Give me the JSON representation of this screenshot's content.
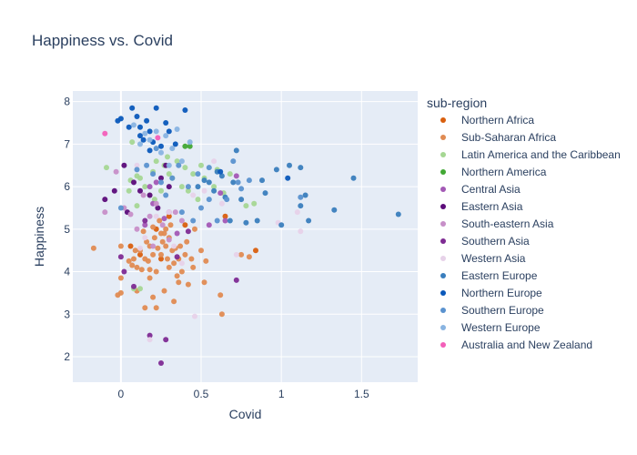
{
  "chart_data": {
    "type": "scatter",
    "title": "Happiness vs. Covid",
    "xlabel": "Covid",
    "ylabel": "Happiness",
    "xlim": [
      -0.3,
      1.85
    ],
    "ylim": [
      1.4,
      8.25
    ],
    "xticks": [
      0,
      0.5,
      1,
      1.5
    ],
    "xtick_labels": [
      "0",
      "0.5",
      "1",
      "1.5"
    ],
    "yticks": [
      2,
      3,
      4,
      5,
      6,
      7,
      8
    ],
    "ytick_labels": [
      "2",
      "3",
      "4",
      "5",
      "6",
      "7",
      "8"
    ],
    "grid": true,
    "legend_title": "sub-region",
    "legend_position": "right",
    "plot_bg": "#e5ecf6",
    "series": [
      {
        "name": "Northern Africa",
        "color": "#d95f0e",
        "points": [
          [
            0.06,
            4.6
          ],
          [
            0.12,
            4.4
          ],
          [
            0.22,
            5.0
          ],
          [
            0.25,
            4.3
          ],
          [
            0.3,
            5.3
          ],
          [
            0.84,
            4.5
          ],
          [
            0.65,
            5.3
          ],
          [
            0.4,
            5.1
          ]
        ]
      },
      {
        "name": "Sub-Saharan Africa",
        "color": "#e08b52",
        "points": [
          [
            -0.17,
            4.55
          ],
          [
            -0.02,
            3.45
          ],
          [
            0.0,
            3.5
          ],
          [
            0.0,
            3.85
          ],
          [
            0.0,
            4.6
          ],
          [
            0.05,
            4.25
          ],
          [
            0.07,
            4.15
          ],
          [
            0.08,
            4.3
          ],
          [
            0.1,
            4.1
          ],
          [
            0.1,
            3.55
          ],
          [
            0.12,
            4.5
          ],
          [
            0.13,
            4.05
          ],
          [
            0.14,
            4.95
          ],
          [
            0.15,
            3.15
          ],
          [
            0.16,
            4.7
          ],
          [
            0.17,
            4.25
          ],
          [
            0.18,
            3.85
          ],
          [
            0.18,
            4.6
          ],
          [
            0.2,
            4.4
          ],
          [
            0.2,
            5.05
          ],
          [
            0.2,
            3.4
          ],
          [
            0.21,
            4.8
          ],
          [
            0.22,
            3.15
          ],
          [
            0.22,
            4.0
          ],
          [
            0.23,
            4.55
          ],
          [
            0.24,
            5.2
          ],
          [
            0.25,
            4.9
          ],
          [
            0.25,
            4.4
          ],
          [
            0.26,
            4.7
          ],
          [
            0.27,
            3.55
          ],
          [
            0.28,
            4.6
          ],
          [
            0.28,
            5.0
          ],
          [
            0.29,
            4.3
          ],
          [
            0.3,
            4.1
          ],
          [
            0.3,
            4.8
          ],
          [
            0.31,
            5.1
          ],
          [
            0.32,
            4.5
          ],
          [
            0.33,
            3.3
          ],
          [
            0.34,
            4.55
          ],
          [
            0.35,
            3.9
          ],
          [
            0.36,
            4.3
          ],
          [
            0.36,
            3.75
          ],
          [
            0.37,
            4.6
          ],
          [
            0.38,
            4.0
          ],
          [
            0.4,
            4.4
          ],
          [
            0.41,
            4.7
          ],
          [
            0.42,
            3.7
          ],
          [
            0.44,
            4.3
          ],
          [
            0.45,
            4.1
          ],
          [
            0.46,
            5.0
          ],
          [
            0.5,
            4.5
          ],
          [
            0.52,
            3.75
          ],
          [
            0.53,
            4.25
          ],
          [
            0.62,
            3.45
          ],
          [
            0.63,
            3.0
          ],
          [
            0.75,
            4.4
          ],
          [
            0.8,
            4.35
          ],
          [
            0.18,
            4.05
          ],
          [
            0.27,
            4.9
          ],
          [
            0.33,
            4.2
          ],
          [
            0.15,
            4.3
          ],
          [
            0.09,
            4.5
          ]
        ]
      },
      {
        "name": "Latin America and the Caribbean",
        "color": "#a5d793",
        "points": [
          [
            -0.09,
            6.45
          ],
          [
            0.05,
            5.9
          ],
          [
            0.06,
            6.15
          ],
          [
            0.07,
            7.05
          ],
          [
            0.08,
            3.6
          ],
          [
            0.1,
            6.25
          ],
          [
            0.1,
            5.55
          ],
          [
            0.12,
            6.2
          ],
          [
            0.15,
            6.0
          ],
          [
            0.18,
            5.8
          ],
          [
            0.2,
            6.35
          ],
          [
            0.22,
            6.6
          ],
          [
            0.25,
            5.9
          ],
          [
            0.27,
            6.5
          ],
          [
            0.3,
            6.3
          ],
          [
            0.32,
            6.2
          ],
          [
            0.35,
            6.6
          ],
          [
            0.38,
            6.0
          ],
          [
            0.4,
            6.45
          ],
          [
            0.42,
            5.9
          ],
          [
            0.45,
            6.3
          ],
          [
            0.48,
            5.7
          ],
          [
            0.5,
            6.5
          ],
          [
            0.52,
            6.2
          ],
          [
            0.58,
            6.0
          ],
          [
            0.6,
            6.4
          ],
          [
            0.64,
            5.85
          ],
          [
            0.68,
            6.3
          ],
          [
            0.78,
            5.55
          ],
          [
            0.83,
            5.6
          ],
          [
            0.29,
            6.7
          ],
          [
            0.21,
            5.7
          ],
          [
            0.12,
            3.6
          ]
        ]
      },
      {
        "name": "Northern America",
        "color": "#41a834",
        "points": [
          [
            0.4,
            6.95
          ],
          [
            0.43,
            6.95
          ]
        ]
      },
      {
        "name": "Central Asia",
        "color": "#a359b5",
        "points": [
          [
            0.15,
            5.1
          ],
          [
            0.18,
            6.0
          ],
          [
            0.2,
            5.6
          ],
          [
            0.22,
            6.1
          ],
          [
            0.27,
            5.25
          ],
          [
            0.3,
            5.4
          ],
          [
            0.35,
            4.9
          ],
          [
            0.55,
            5.1
          ],
          [
            0.62,
            5.85
          ],
          [
            0.65,
            5.2
          ],
          [
            0.72,
            6.25
          ]
        ]
      },
      {
        "name": "Eastern Asia",
        "color": "#5c0c7a",
        "points": [
          [
            -0.1,
            5.7
          ],
          [
            -0.04,
            5.9
          ],
          [
            0.02,
            6.5
          ],
          [
            0.04,
            5.4
          ],
          [
            0.08,
            6.1
          ],
          [
            0.12,
            5.9
          ],
          [
            0.18,
            5.8
          ],
          [
            0.25,
            6.2
          ],
          [
            0.28,
            6.5
          ],
          [
            0.3,
            6.0
          ],
          [
            0.23,
            5.5
          ]
        ]
      },
      {
        "name": "South-eastern Asia",
        "color": "#c78fc8",
        "points": [
          [
            -0.1,
            5.4
          ],
          [
            -0.03,
            6.35
          ],
          [
            0.02,
            5.5
          ],
          [
            0.06,
            5.35
          ],
          [
            0.1,
            5.0
          ],
          [
            0.14,
            5.8
          ],
          [
            0.18,
            5.3
          ],
          [
            0.22,
            5.6
          ],
          [
            0.26,
            5.1
          ],
          [
            0.3,
            4.75
          ],
          [
            0.34,
            5.4
          ],
          [
            0.38,
            5.2
          ],
          [
            0.2,
            4.6
          ]
        ]
      },
      {
        "name": "Southern Asia",
        "color": "#7e2b93",
        "points": [
          [
            0.0,
            4.35
          ],
          [
            0.02,
            4.0
          ],
          [
            0.18,
            2.5
          ],
          [
            0.25,
            1.85
          ],
          [
            0.28,
            2.4
          ],
          [
            0.35,
            4.35
          ],
          [
            0.42,
            4.95
          ],
          [
            0.72,
            3.8
          ],
          [
            0.15,
            5.2
          ],
          [
            0.08,
            3.65
          ]
        ]
      },
      {
        "name": "Western Asia",
        "color": "#e7d2e9",
        "points": [
          [
            0.1,
            6.5
          ],
          [
            0.15,
            4.8
          ],
          [
            0.22,
            5.3
          ],
          [
            0.3,
            5.4
          ],
          [
            0.33,
            4.6
          ],
          [
            0.45,
            5.8
          ],
          [
            0.52,
            5.9
          ],
          [
            0.58,
            6.6
          ],
          [
            0.63,
            5.6
          ],
          [
            0.46,
            2.95
          ],
          [
            0.12,
            4.55
          ],
          [
            0.18,
            2.4
          ],
          [
            0.72,
            4.4
          ],
          [
            0.98,
            5.15
          ],
          [
            1.1,
            5.4
          ],
          [
            1.12,
            4.95
          ],
          [
            0.38,
            4.2
          ]
        ]
      },
      {
        "name": "Eastern Europe",
        "color": "#3a7ebd",
        "points": [
          [
            0.48,
            6.0
          ],
          [
            0.52,
            6.15
          ],
          [
            0.55,
            6.1
          ],
          [
            0.58,
            5.9
          ],
          [
            0.6,
            6.35
          ],
          [
            0.63,
            6.25
          ],
          [
            0.65,
            5.75
          ],
          [
            0.68,
            5.2
          ],
          [
            0.7,
            6.1
          ],
          [
            0.72,
            6.85
          ],
          [
            0.75,
            5.7
          ],
          [
            0.78,
            5.15
          ],
          [
            0.85,
            5.2
          ],
          [
            0.9,
            5.85
          ],
          [
            0.97,
            6.4
          ],
          [
            1.0,
            5.1
          ],
          [
            1.05,
            6.5
          ],
          [
            1.12,
            6.45
          ],
          [
            1.15,
            5.8
          ],
          [
            1.17,
            5.2
          ],
          [
            1.33,
            5.45
          ],
          [
            1.45,
            6.2
          ],
          [
            1.73,
            5.35
          ],
          [
            1.12,
            5.55
          ],
          [
            0.88,
            6.15
          ]
        ]
      },
      {
        "name": "Northern Europe",
        "color": "#0a58ba",
        "points": [
          [
            -0.02,
            7.55
          ],
          [
            0.0,
            7.6
          ],
          [
            0.05,
            7.4
          ],
          [
            0.07,
            7.85
          ],
          [
            0.1,
            7.65
          ],
          [
            0.12,
            7.4
          ],
          [
            0.14,
            7.1
          ],
          [
            0.16,
            7.55
          ],
          [
            0.18,
            7.3
          ],
          [
            0.2,
            7.05
          ],
          [
            0.22,
            7.85
          ],
          [
            0.25,
            6.95
          ],
          [
            0.28,
            7.5
          ],
          [
            0.3,
            7.3
          ],
          [
            0.34,
            7.0
          ],
          [
            0.4,
            7.8
          ],
          [
            0.12,
            7.2
          ],
          [
            0.18,
            6.85
          ],
          [
            0.62,
            6.35
          ],
          [
            1.04,
            6.2
          ]
        ]
      },
      {
        "name": "Southern Europe",
        "color": "#5a92cf",
        "points": [
          [
            0.0,
            5.5
          ],
          [
            0.1,
            6.4
          ],
          [
            0.16,
            6.5
          ],
          [
            0.2,
            6.3
          ],
          [
            0.25,
            6.1
          ],
          [
            0.28,
            5.8
          ],
          [
            0.32,
            6.2
          ],
          [
            0.36,
            6.5
          ],
          [
            0.38,
            5.4
          ],
          [
            0.42,
            6.0
          ],
          [
            0.48,
            6.3
          ],
          [
            0.5,
            5.5
          ],
          [
            0.55,
            5.7
          ],
          [
            0.6,
            5.2
          ],
          [
            0.66,
            5.7
          ],
          [
            0.7,
            6.6
          ],
          [
            0.75,
            5.95
          ],
          [
            0.45,
            5.2
          ],
          [
            0.8,
            6.15
          ],
          [
            1.12,
            5.75
          ],
          [
            0.55,
            6.45
          ],
          [
            0.22,
            6.9
          ],
          [
            0.73,
            6.1
          ]
        ]
      },
      {
        "name": "Western Europe",
        "color": "#89b4e1",
        "points": [
          [
            0.08,
            7.45
          ],
          [
            0.12,
            7.0
          ],
          [
            0.18,
            7.1
          ],
          [
            0.22,
            7.3
          ],
          [
            0.25,
            6.8
          ],
          [
            0.28,
            7.2
          ],
          [
            0.32,
            6.9
          ],
          [
            0.35,
            7.35
          ],
          [
            0.38,
            6.6
          ],
          [
            0.43,
            7.05
          ],
          [
            0.15,
            7.25
          ],
          [
            0.3,
            6.5
          ]
        ]
      },
      {
        "name": "Australia and New Zealand",
        "color": "#f35fb9",
        "points": [
          [
            -0.1,
            7.25
          ],
          [
            0.23,
            7.15
          ]
        ]
      }
    ]
  }
}
